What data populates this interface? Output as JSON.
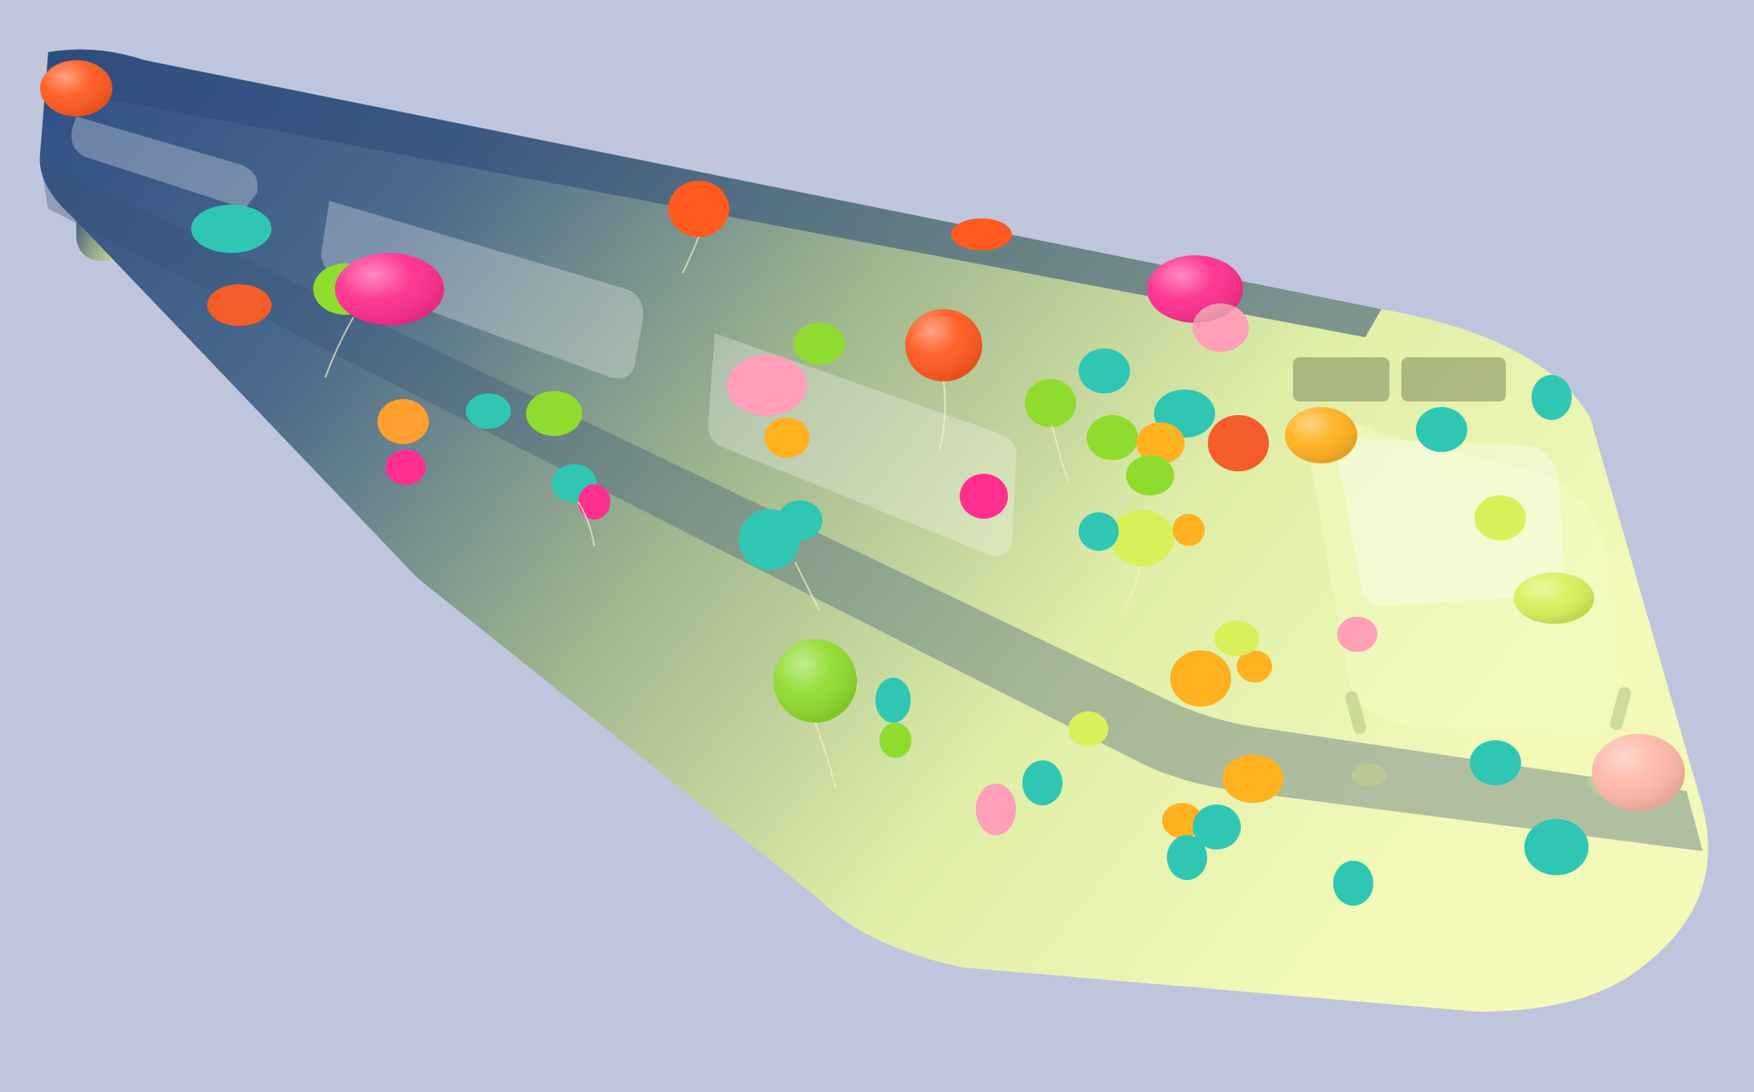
{
  "scene": {
    "subject": "train-silhouette-with-balloons",
    "background_color": "#bfc5dc",
    "train_gradient": [
      "#2f4f86",
      "#4c6a8c",
      "#9fb58f",
      "#dfeea7",
      "#f2f9b9"
    ],
    "window_tint": "#ffffff",
    "balloon_colors": [
      "#ff5a1f",
      "#ff2f8f",
      "#2fc7b3",
      "#8fdc2f",
      "#ffb21f",
      "#ff9fb8",
      "#d8f05a",
      "#f45c2a"
    ]
  }
}
